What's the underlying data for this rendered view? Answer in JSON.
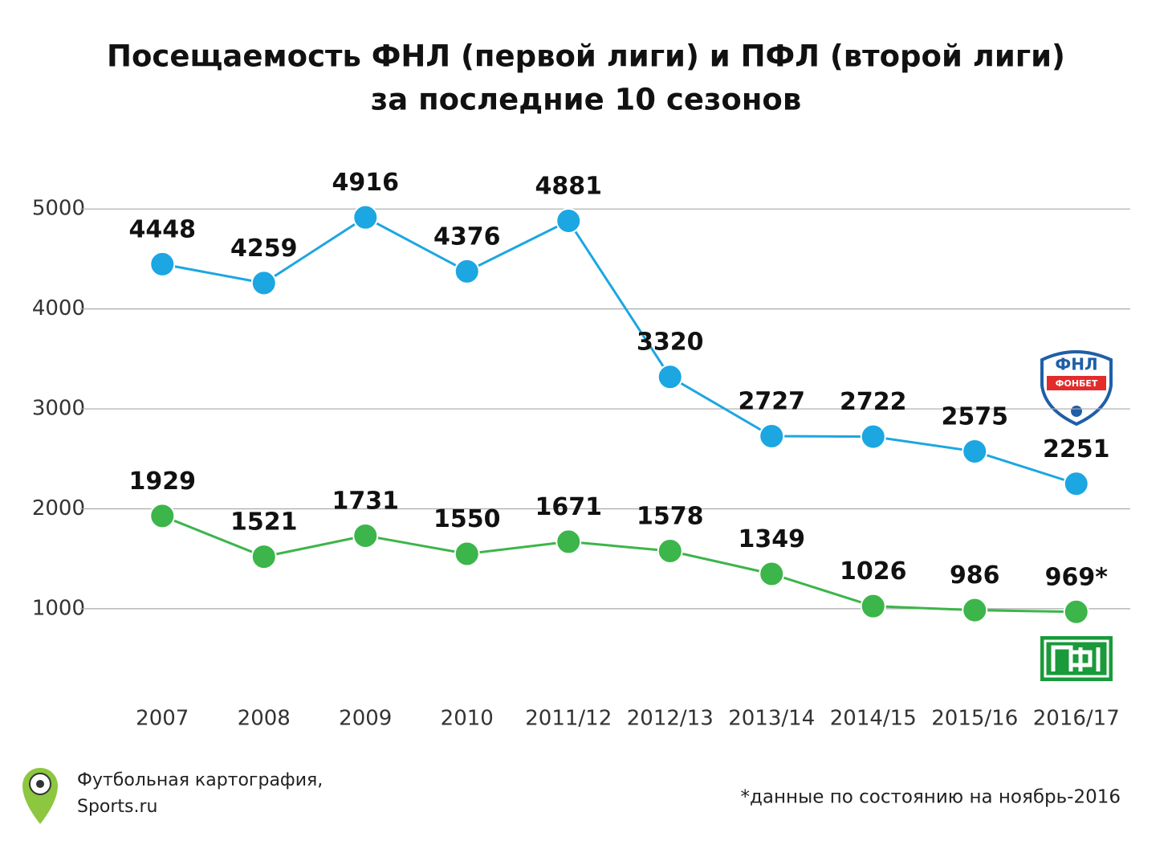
{
  "chart_data": {
    "type": "line",
    "title": "Посещаемость ФНЛ (первой лиги) и ПФЛ (второй лиги)",
    "subtitle": "за последние 10 сезонов",
    "categories": [
      "2007",
      "2008",
      "2009",
      "2010",
      "2011/12",
      "2012/13",
      "2013/14",
      "2014/15",
      "2015/16",
      "2016/17"
    ],
    "series": [
      {
        "color": "#1ca6e2",
        "values": [
          4448,
          4259,
          4916,
          4376,
          4881,
          3320,
          2727,
          2722,
          2575,
          2251
        ]
      },
      {
        "color": "#3cb54a",
        "values": [
          1929,
          1521,
          1731,
          1550,
          1671,
          1578,
          1349,
          1026,
          986,
          969
        ],
        "value_labels": [
          "1929",
          "1521",
          "1731",
          "1550",
          "1671",
          "1578",
          "1349",
          "1026",
          "986",
          "969*"
        ]
      }
    ],
    "ylim": [
      300,
      5500
    ],
    "yticks": [
      1000,
      2000,
      3000,
      4000,
      5000
    ],
    "grid": true,
    "logo_fnl": "ФНЛ",
    "logo_fonbet": "ФОНБЕТ",
    "source": [
      "Футбольная картография,",
      "Sports.ru"
    ],
    "footnote": "*данные по состоянию на ноябрь-2016"
  }
}
